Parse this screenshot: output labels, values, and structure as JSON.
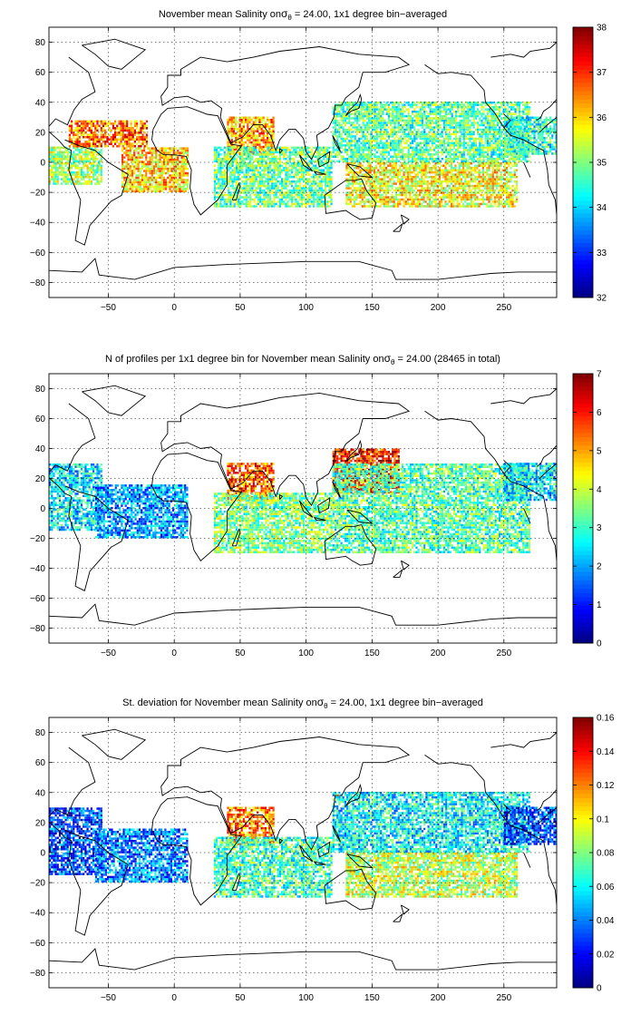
{
  "chart_data": [
    {
      "type": "heatmap",
      "title": "November mean Salinity onσθ = 24.00, 1x1 degree bin−averaged",
      "title_parts": {
        "before": "November mean Salinity on",
        "sigma": "σ",
        "sub": "θ",
        "after": " = 24.00, 1x1 degree bin−averaged"
      },
      "xlim": [
        -95,
        290
      ],
      "ylim": [
        -90,
        90
      ],
      "xticks": [
        -50,
        0,
        50,
        100,
        150,
        200,
        250
      ],
      "yticks": [
        -80,
        -60,
        -40,
        -20,
        0,
        20,
        40,
        60,
        80
      ],
      "grid": true,
      "colormap": "jet",
      "colorbar": {
        "ticks": [
          32,
          33,
          34,
          35,
          36,
          37,
          38
        ],
        "min": 32,
        "max": 38
      },
      "regions": [
        {
          "name": "",
          "lon": [
            -95,
            -55
          ],
          "lat": [
            -15,
            10
          ],
          "value": 35.2
        },
        {
          "name": "",
          "lon": [
            -80,
            -20
          ],
          "lat": [
            10,
            28
          ],
          "value": 36.6
        },
        {
          "name": "",
          "lon": [
            -40,
            10
          ],
          "lat": [
            -20,
            10
          ],
          "value": 36.0
        },
        {
          "name": "",
          "lon": [
            40,
            75
          ],
          "lat": [
            5,
            30
          ],
          "value": 36.3
        },
        {
          "name": "",
          "lon": [
            30,
            120
          ],
          "lat": [
            -30,
            10
          ],
          "value": 34.9
        },
        {
          "name": "",
          "lon": [
            120,
            270
          ],
          "lat": [
            0,
            40
          ],
          "value": 34.8
        },
        {
          "name": "",
          "lon": [
            130,
            260
          ],
          "lat": [
            -30,
            0
          ],
          "value": 35.7
        },
        {
          "name": "",
          "lon": [
            250,
            290
          ],
          "lat": [
            5,
            30
          ],
          "value": 34.5
        }
      ]
    },
    {
      "type": "heatmap",
      "title": "N of profiles per 1x1 degree bin for November mean Salinity onσθ = 24.00 (28465 in total)",
      "title_parts": {
        "before": "N of profiles per 1x1 degree bin for November mean Salinity on",
        "sigma": "σ",
        "sub": "θ",
        "after": " = 24.00 (28465 in total)"
      },
      "xlim": [
        -95,
        290
      ],
      "ylim": [
        -90,
        90
      ],
      "xticks": [
        -50,
        0,
        50,
        100,
        150,
        200,
        250
      ],
      "yticks": [
        -80,
        -60,
        -40,
        -20,
        0,
        20,
        40,
        60,
        80
      ],
      "grid": true,
      "colormap": "jet",
      "colorbar": {
        "ticks": [
          0,
          1,
          2,
          3,
          4,
          5,
          6,
          7
        ],
        "min": 0,
        "max": 7
      },
      "regions": [
        {
          "name": "",
          "lon": [
            -95,
            -55
          ],
          "lat": [
            -15,
            30
          ],
          "value": 2.5
        },
        {
          "name": "",
          "lon": [
            -60,
            10
          ],
          "lat": [
            -20,
            15
          ],
          "value": 2.0
        },
        {
          "name": "",
          "lon": [
            40,
            75
          ],
          "lat": [
            5,
            30
          ],
          "value": 5.5
        },
        {
          "name": "",
          "lon": [
            30,
            120
          ],
          "lat": [
            -30,
            10
          ],
          "value": 3.5
        },
        {
          "name": "",
          "lon": [
            120,
            170
          ],
          "lat": [
            10,
            40
          ],
          "value": 6.0
        },
        {
          "name": "",
          "lon": [
            120,
            270
          ],
          "lat": [
            -30,
            30
          ],
          "value": 3.2
        },
        {
          "name": "",
          "lon": [
            250,
            290
          ],
          "lat": [
            5,
            30
          ],
          "value": 2.5
        }
      ]
    },
    {
      "type": "heatmap",
      "title": "St. deviation for November mean Salinity onσθ = 24.00, 1x1 degree bin−averaged",
      "title_parts": {
        "before": "St. deviation for November mean Salinity on",
        "sigma": "σ",
        "sub": "θ",
        "after": " = 24.00, 1x1 degree bin−averaged"
      },
      "xlim": [
        -95,
        290
      ],
      "ylim": [
        -90,
        90
      ],
      "xticks": [
        -50,
        0,
        50,
        100,
        150,
        200,
        250
      ],
      "yticks": [
        -80,
        -60,
        -40,
        -20,
        0,
        20,
        40,
        60,
        80
      ],
      "grid": true,
      "colormap": "jet",
      "colorbar": {
        "ticks": [
          0,
          0.02,
          0.04,
          0.06,
          0.08,
          0.1,
          0.12,
          0.14,
          0.16
        ],
        "min": 0,
        "max": 0.16
      },
      "regions": [
        {
          "name": "",
          "lon": [
            -95,
            -55
          ],
          "lat": [
            -15,
            30
          ],
          "value": 0.03
        },
        {
          "name": "",
          "lon": [
            -60,
            10
          ],
          "lat": [
            -20,
            15
          ],
          "value": 0.04
        },
        {
          "name": "",
          "lon": [
            40,
            75
          ],
          "lat": [
            5,
            30
          ],
          "value": 0.12
        },
        {
          "name": "",
          "lon": [
            30,
            120
          ],
          "lat": [
            -30,
            10
          ],
          "value": 0.07
        },
        {
          "name": "",
          "lon": [
            120,
            270
          ],
          "lat": [
            0,
            40
          ],
          "value": 0.06
        },
        {
          "name": "",
          "lon": [
            130,
            260
          ],
          "lat": [
            -30,
            0
          ],
          "value": 0.09
        },
        {
          "name": "",
          "lon": [
            250,
            290
          ],
          "lat": [
            5,
            30
          ],
          "value": 0.03
        }
      ]
    }
  ]
}
